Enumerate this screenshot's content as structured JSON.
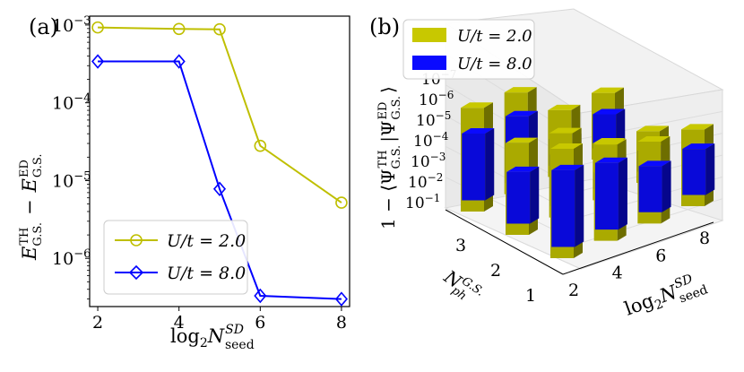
{
  "panels": {
    "a": {
      "label": "(a)"
    },
    "b": {
      "label": "(b)"
    }
  },
  "chart_data": [
    {
      "type": "line",
      "panel": "(a)",
      "yscale": "log",
      "x": [
        2,
        4,
        5,
        6,
        8
      ],
      "xticks": [
        "2",
        "4",
        "6",
        "8"
      ],
      "xlim": [
        1.8,
        8.2
      ],
      "ylim": [
        2.4e-07,
        0.0013
      ],
      "yticks": [
        "10^{-6}",
        "10^{-5}",
        "10^{-4}",
        "10^{-3}"
      ],
      "xlabel": "log_2 N_seed^SD",
      "ylabel": "E_G.S.^TH − E_G.S.^ED",
      "legend_position": "lower left",
      "series": [
        {
          "name": "U/t = 2.0",
          "marker": "circle",
          "color": "#bfbf00",
          "values": [
            0.00093,
            0.00089,
            0.00088,
            2.8e-05,
            5.2e-06
          ]
        },
        {
          "name": "U/t = 8.0",
          "marker": "diamond",
          "color": "#0000ff",
          "values": [
            0.00034,
            0.00034,
            7.8e-06,
            3.3e-07,
            3e-07
          ]
        }
      ]
    },
    {
      "type": "bar3d",
      "panel": "(b)",
      "x_label": "log_2 N_seed^SD",
      "x_ticks": [
        "2",
        "4",
        "6",
        "8"
      ],
      "y_label": "N_ph^G.S.",
      "y_ticks": [
        "1",
        "2",
        "3"
      ],
      "z_label": "1 − ⟨Ψ_G.S.^TH | Ψ_G.S.^ED⟩",
      "z_ticks": [
        "10^{-1}",
        "10^{-2}",
        "10^{-3}",
        "10^{-4}",
        "10^{-5}",
        "10^{-6}",
        "10^{-7}"
      ],
      "legend_position": "upper left",
      "grid": true,
      "series": [
        {
          "name": "U/t = 2.0",
          "color": "#c8c800",
          "values": [
            {
              "x": 2,
              "y": 3,
              "z": 0.006
            },
            {
              "x": 4,
              "y": 3,
              "z": 0.005
            },
            {
              "x": 6,
              "y": 3,
              "z": 0.0002
            },
            {
              "x": 8,
              "y": 3,
              "z": 0.0002
            },
            {
              "x": 2,
              "y": 2,
              "z": 0.002
            },
            {
              "x": 4,
              "y": 2,
              "z": 0.001
            },
            {
              "x": 6,
              "y": 2,
              "z": 8e-05
            },
            {
              "x": 8,
              "y": 2,
              "z": 5e-05
            },
            {
              "x": 2,
              "y": 1,
              "z": 0.01
            },
            {
              "x": 4,
              "y": 1,
              "z": 0.003
            },
            {
              "x": 6,
              "y": 1,
              "z": 0.0008
            },
            {
              "x": 8,
              "y": 1,
              "z": 0.0005
            }
          ]
        },
        {
          "name": "U/t = 8.0",
          "color": "#0a0aff",
          "values": [
            {
              "x": 2,
              "y": 3,
              "z": 0.0002
            },
            {
              "x": 4,
              "y": 3,
              "z": 0.0002
            },
            {
              "x": 6,
              "y": 3,
              "z": 5e-06
            },
            {
              "x": 8,
              "y": 3,
              "z": 1e-05
            },
            {
              "x": 2,
              "y": 2,
              "z": 5e-05
            },
            {
              "x": 4,
              "y": 2,
              "z": 5e-05
            },
            {
              "x": 6,
              "y": 2,
              "z": 2e-06
            },
            {
              "x": 8,
              "y": 2,
              "z": 3e-06
            },
            {
              "x": 2,
              "y": 1,
              "z": 0.0005
            },
            {
              "x": 4,
              "y": 1,
              "z": 0.0002
            },
            {
              "x": 6,
              "y": 1,
              "z": 3e-05
            },
            {
              "x": 8,
              "y": 1,
              "z": 3e-05
            }
          ]
        }
      ]
    }
  ]
}
